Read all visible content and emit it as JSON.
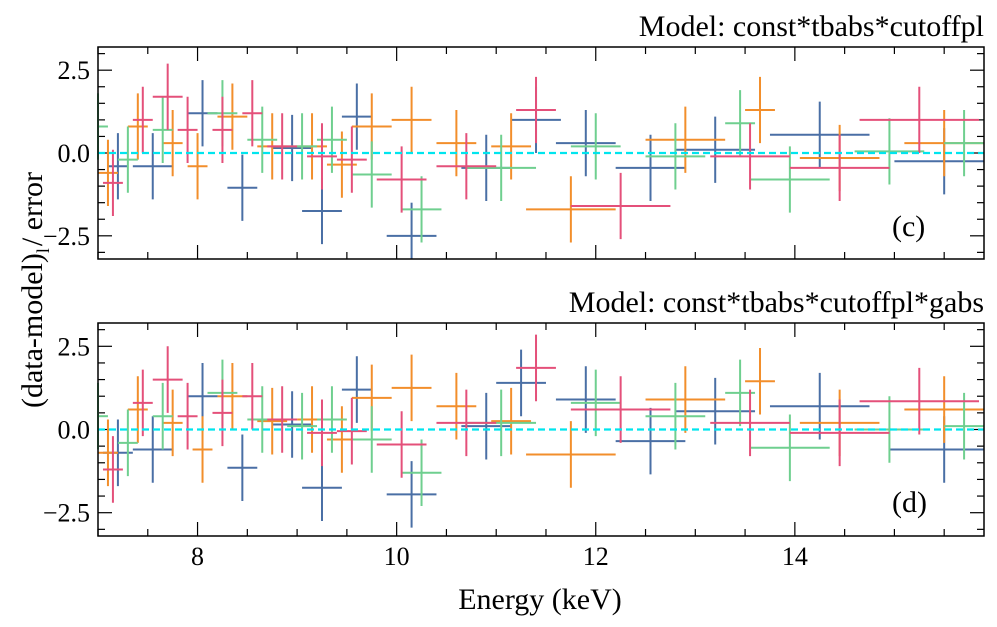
{
  "figure": {
    "ylabel": "(data-model)$_{\\rm l}$/ error",
    "ylabel_main": "(data-model)",
    "ylabel_sub": "l",
    "ylabel_tail": "/ error",
    "xlabel": "Energy (keV)"
  },
  "colors": {
    "blue": "#4a6fa5",
    "orange": "#f28e2b",
    "green": "#6fcf8f",
    "pink": "#e4507a",
    "zero_line": "#00e5ee"
  },
  "chart_data": [
    {
      "type": "scatter",
      "panel_label": "(c)",
      "model_title": "Model: const*tbabs*cutoffpl",
      "xlim": [
        7.0,
        15.9
      ],
      "ylim": [
        -3.2,
        3.2
      ],
      "x_ticks": [
        8,
        10,
        12,
        14
      ],
      "y_ticks": [
        2.5,
        0.0,
        -2.5
      ],
      "y_tick_labels": [
        "2.5",
        "0.0",
        "−2.5"
      ],
      "reference_line": 0.0,
      "series": [
        {
          "color": "blue",
          "points": [
            [
              7.2,
              -0.4,
              0.1,
              1.0
            ],
            [
              7.55,
              -0.4,
              0.2,
              1.0
            ],
            [
              8.05,
              1.2,
              0.15,
              1.0
            ],
            [
              8.45,
              -1.05,
              0.15,
              1.0
            ],
            [
              8.95,
              0.15,
              0.2,
              1.0
            ],
            [
              9.25,
              -1.75,
              0.2,
              1.0
            ],
            [
              9.6,
              1.1,
              0.15,
              1.0
            ],
            [
              10.15,
              -2.5,
              0.25,
              1.0
            ],
            [
              10.9,
              -0.45,
              0.25,
              1.0
            ],
            [
              11.4,
              1.0,
              0.25,
              1.0
            ],
            [
              11.9,
              0.3,
              0.3,
              1.0
            ],
            [
              12.55,
              -0.45,
              0.35,
              1.0
            ],
            [
              13.2,
              0.1,
              0.4,
              1.0
            ],
            [
              14.25,
              0.55,
              0.5,
              1.0
            ],
            [
              15.5,
              -0.25,
              0.5,
              1.0
            ]
          ]
        },
        {
          "color": "orange",
          "points": [
            [
              7.1,
              -0.6,
              0.1,
              1.0
            ],
            [
              7.4,
              0.8,
              0.1,
              1.0
            ],
            [
              7.75,
              0.3,
              0.1,
              1.0
            ],
            [
              8.0,
              -0.4,
              0.1,
              1.0
            ],
            [
              8.35,
              1.1,
              0.15,
              1.0
            ],
            [
              8.75,
              0.2,
              0.15,
              1.0
            ],
            [
              9.15,
              0.2,
              0.15,
              1.0
            ],
            [
              9.45,
              -0.35,
              0.15,
              1.0
            ],
            [
              9.75,
              0.8,
              0.2,
              1.0
            ],
            [
              10.15,
              1.0,
              0.2,
              1.0
            ],
            [
              10.6,
              0.3,
              0.2,
              1.0
            ],
            [
              11.15,
              0.2,
              0.2,
              1.0
            ],
            [
              11.75,
              -1.7,
              0.45,
              1.0
            ],
            [
              12.9,
              0.4,
              0.4,
              1.0
            ],
            [
              13.65,
              1.3,
              0.15,
              1.0
            ],
            [
              14.45,
              -0.15,
              0.4,
              1.0
            ],
            [
              15.5,
              0.3,
              0.4,
              1.0
            ]
          ]
        },
        {
          "color": "green",
          "points": [
            [
              7.0,
              0.8,
              0.1,
              1.0
            ],
            [
              7.3,
              -0.2,
              0.1,
              1.0
            ],
            [
              7.65,
              0.7,
              0.1,
              1.0
            ],
            [
              8.25,
              1.2,
              0.15,
              1.0
            ],
            [
              8.65,
              0.4,
              0.15,
              1.0
            ],
            [
              9.05,
              0.2,
              0.15,
              1.0
            ],
            [
              9.35,
              0.4,
              0.15,
              1.0
            ],
            [
              9.75,
              -0.65,
              0.2,
              1.0
            ],
            [
              10.25,
              -1.7,
              0.2,
              1.0
            ],
            [
              11.05,
              -0.45,
              0.35,
              1.0
            ],
            [
              12.0,
              0.2,
              0.25,
              1.0
            ],
            [
              12.8,
              -0.1,
              0.3,
              1.0
            ],
            [
              13.45,
              0.9,
              0.15,
              1.0
            ],
            [
              13.95,
              -0.8,
              0.4,
              1.0
            ],
            [
              14.95,
              0.05,
              0.35,
              1.0
            ],
            [
              15.7,
              0.3,
              0.2,
              1.0
            ]
          ]
        },
        {
          "color": "pink",
          "points": [
            [
              7.15,
              -0.9,
              0.1,
              1.0
            ],
            [
              7.45,
              1.0,
              0.1,
              1.0
            ],
            [
              7.7,
              1.7,
              0.15,
              1.0
            ],
            [
              7.9,
              0.7,
              0.1,
              1.0
            ],
            [
              8.25,
              0.7,
              0.1,
              1.0
            ],
            [
              8.55,
              1.2,
              0.1,
              1.0
            ],
            [
              8.85,
              0.2,
              0.15,
              1.0
            ],
            [
              9.25,
              -0.1,
              0.15,
              1.0
            ],
            [
              9.55,
              -0.2,
              0.15,
              1.0
            ],
            [
              10.05,
              -0.8,
              0.25,
              1.0
            ],
            [
              10.7,
              -0.4,
              0.3,
              1.0
            ],
            [
              11.4,
              1.3,
              0.2,
              1.0
            ],
            [
              12.25,
              -1.6,
              0.5,
              1.0
            ],
            [
              13.55,
              -0.1,
              0.4,
              1.0
            ],
            [
              14.45,
              -0.45,
              0.5,
              1.0
            ],
            [
              15.25,
              1.0,
              0.6,
              1.0
            ]
          ]
        }
      ]
    },
    {
      "type": "scatter",
      "panel_label": "(d)",
      "model_title": "Model: const*tbabs*cutoffpl*gabs",
      "xlim": [
        7.0,
        15.9
      ],
      "ylim": [
        -3.2,
        3.2
      ],
      "x_ticks": [
        8,
        10,
        12,
        14
      ],
      "x_tick_labels": [
        "8",
        "10",
        "12",
        "14"
      ],
      "y_ticks": [
        2.5,
        0.0,
        -2.5
      ],
      "y_tick_labels": [
        "2.5",
        "0.0",
        "−2.5"
      ],
      "reference_line": 0.0,
      "series": [
        {
          "color": "blue",
          "points": [
            [
              7.2,
              -0.7,
              0.15,
              1.0
            ],
            [
              7.55,
              -0.6,
              0.2,
              1.0
            ],
            [
              8.05,
              1.0,
              0.15,
              1.0
            ],
            [
              8.45,
              -1.15,
              0.15,
              1.0
            ],
            [
              8.95,
              0.15,
              0.2,
              1.0
            ],
            [
              9.25,
              -1.75,
              0.2,
              1.0
            ],
            [
              9.6,
              1.2,
              0.15,
              1.0
            ],
            [
              10.15,
              -1.95,
              0.25,
              1.0
            ],
            [
              10.9,
              0.1,
              0.25,
              1.0
            ],
            [
              11.25,
              1.4,
              0.25,
              1.0
            ],
            [
              11.9,
              0.9,
              0.3,
              1.0
            ],
            [
              12.55,
              -0.35,
              0.35,
              1.0
            ],
            [
              13.2,
              0.55,
              0.4,
              1.0
            ],
            [
              14.25,
              0.7,
              0.5,
              1.0
            ],
            [
              15.5,
              -0.6,
              0.55,
              1.0
            ]
          ]
        },
        {
          "color": "orange",
          "points": [
            [
              7.1,
              -0.7,
              0.1,
              1.0
            ],
            [
              7.4,
              0.6,
              0.1,
              1.0
            ],
            [
              7.75,
              0.2,
              0.1,
              1.0
            ],
            [
              8.05,
              -0.6,
              0.1,
              1.0
            ],
            [
              8.35,
              1.0,
              0.15,
              1.0
            ],
            [
              8.75,
              0.25,
              0.15,
              1.0
            ],
            [
              9.15,
              0.3,
              0.15,
              1.0
            ],
            [
              9.45,
              -0.3,
              0.15,
              1.0
            ],
            [
              9.75,
              0.95,
              0.2,
              1.0
            ],
            [
              10.15,
              1.25,
              0.2,
              1.0
            ],
            [
              10.6,
              0.7,
              0.2,
              1.0
            ],
            [
              11.15,
              0.25,
              0.2,
              1.0
            ],
            [
              11.75,
              -0.75,
              0.45,
              1.0
            ],
            [
              12.9,
              0.9,
              0.4,
              1.0
            ],
            [
              13.65,
              1.45,
              0.15,
              1.0
            ],
            [
              14.45,
              0.2,
              0.4,
              1.0
            ],
            [
              15.5,
              0.6,
              0.4,
              1.0
            ]
          ]
        },
        {
          "color": "green",
          "points": [
            [
              7.0,
              0.4,
              0.1,
              1.0
            ],
            [
              7.3,
              -0.4,
              0.1,
              1.0
            ],
            [
              7.65,
              0.4,
              0.1,
              1.0
            ],
            [
              8.25,
              1.1,
              0.15,
              1.0
            ],
            [
              8.65,
              0.3,
              0.15,
              1.0
            ],
            [
              9.05,
              0.1,
              0.15,
              1.0
            ],
            [
              9.35,
              0.3,
              0.15,
              1.0
            ],
            [
              9.75,
              -0.3,
              0.2,
              1.0
            ],
            [
              10.25,
              -1.3,
              0.2,
              1.0
            ],
            [
              11.05,
              0.2,
              0.35,
              1.0
            ],
            [
              12.0,
              0.8,
              0.25,
              1.0
            ],
            [
              12.8,
              0.4,
              0.3,
              1.0
            ],
            [
              13.45,
              1.1,
              0.15,
              1.0
            ],
            [
              13.95,
              -0.55,
              0.4,
              1.0
            ],
            [
              14.95,
              0.0,
              0.35,
              1.0
            ],
            [
              15.7,
              0.1,
              0.2,
              1.0
            ]
          ]
        },
        {
          "color": "pink",
          "points": [
            [
              7.15,
              -1.2,
              0.1,
              1.0
            ],
            [
              7.45,
              0.8,
              0.1,
              1.0
            ],
            [
              7.7,
              1.5,
              0.15,
              1.0
            ],
            [
              7.9,
              0.4,
              0.1,
              1.0
            ],
            [
              8.25,
              0.5,
              0.1,
              1.0
            ],
            [
              8.55,
              1.0,
              0.1,
              1.0
            ],
            [
              8.85,
              0.3,
              0.15,
              1.0
            ],
            [
              9.25,
              -0.1,
              0.15,
              1.0
            ],
            [
              9.55,
              -0.05,
              0.15,
              1.0
            ],
            [
              10.05,
              -0.45,
              0.25,
              1.0
            ],
            [
              10.7,
              0.2,
              0.3,
              1.0
            ],
            [
              11.4,
              1.85,
              0.2,
              1.0
            ],
            [
              12.25,
              0.6,
              0.5,
              1.0
            ],
            [
              13.55,
              0.2,
              0.4,
              1.0
            ],
            [
              14.45,
              -0.1,
              0.5,
              1.0
            ],
            [
              15.25,
              0.85,
              0.6,
              1.0
            ]
          ]
        }
      ]
    }
  ]
}
